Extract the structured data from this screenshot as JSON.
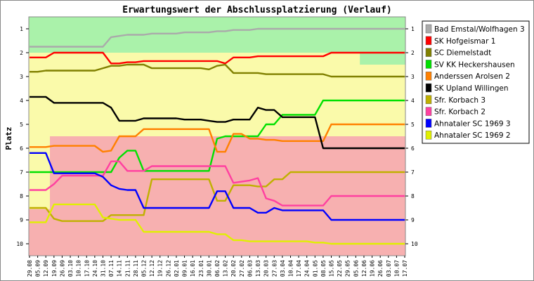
{
  "chart_data": {
    "type": "line",
    "title": "Erwartungswert der Abschlussplatzierung (Verlauf)",
    "ylabel": "Platz",
    "ylim": [
      10.5,
      0.5
    ],
    "yticks": [
      1,
      2,
      3,
      4,
      5,
      6,
      7,
      8,
      9,
      10
    ],
    "x": [
      "29.08",
      "05.09",
      "12.09",
      "19.09",
      "26.09",
      "03.10",
      "10.10",
      "17.10",
      "24.10",
      "31.10",
      "07.11",
      "14.11",
      "21.11",
      "28.11",
      "05.12",
      "12.12",
      "19.12",
      "26.12",
      "02.01",
      "09.01",
      "16.01",
      "23.01",
      "30.01",
      "06.02",
      "13.02",
      "20.02",
      "27.02",
      "06.03",
      "13.03",
      "20.03",
      "27.03",
      "03.04",
      "10.04",
      "17.04",
      "24.04",
      "01.05",
      "08.05",
      "15.05",
      "22.05",
      "29.05",
      "05.06",
      "12.06",
      "19.06",
      "26.06",
      "03.07",
      "10.07",
      "17.07"
    ],
    "xtick_labels": [
      "29.08",
      "05.09",
      "12.09",
      "19.09",
      "26.09",
      "03.10",
      "10.10",
      "17.10",
      "24.10",
      "31.10",
      "07.11",
      "14.11",
      "21.11",
      "28.11",
      "05.12",
      "12.12",
      "19.12",
      "26.12",
      "02.01",
      "09.01",
      "16.01",
      "23.01",
      "30.01",
      "06.02",
      "13.02",
      "20.02",
      "27.02",
      "06.03",
      "13.03",
      "20.03",
      "27.03",
      "03.04",
      "10.04",
      "17.04",
      "24.04",
      "01.05",
      "08.05",
      "15.05",
      "22.05",
      "29.05",
      "05.06",
      "12.06",
      "19.06",
      "26.06",
      "03.07",
      "10.07",
      "17.07"
    ],
    "zones": [
      {
        "color": "#aaf2aa",
        "boundary": [
          2,
          2,
          2,
          2,
          2,
          2,
          2,
          2,
          2,
          2,
          2,
          2,
          2,
          2,
          2,
          2,
          2,
          2,
          2,
          2,
          2,
          2,
          2,
          2,
          2,
          2,
          2,
          2,
          2,
          2,
          2,
          2,
          2,
          2,
          2,
          2,
          2,
          2,
          2,
          2,
          2,
          2.5,
          2.5,
          2.5,
          2.5,
          2.5,
          2.5
        ]
      },
      {
        "color": "#fafaaa",
        "boundary": [
          5.5,
          5.5,
          5.5,
          5.5,
          5.5,
          5.5,
          5.5,
          5.5,
          5.5,
          5.5,
          5.5,
          5.5,
          5.5,
          5.5,
          5.5,
          5.5,
          5.5,
          5.5,
          5.5,
          5.5,
          5.5,
          5.5,
          5.5,
          5.5,
          5.5,
          5.5,
          5.5,
          5.5,
          5.5,
          5.5,
          5.5,
          5.5,
          5.5,
          5.5,
          5.5,
          5.5,
          5.5,
          5.5,
          5.5,
          5.5,
          5.5,
          5.5,
          5.5,
          5.5,
          5.5,
          5.5,
          5.5
        ]
      },
      {
        "color": "#f7b0b0",
        "boundary": null
      }
    ],
    "green_notch": {
      "x_index": 3,
      "upto": 5.5
    },
    "series": [
      {
        "name": "Bad Emstal/Wolfhagen 3",
        "color": "#aaaaaa",
        "values": [
          1.75,
          1.75,
          1.75,
          1.75,
          1.75,
          1.75,
          1.75,
          1.75,
          1.75,
          1.75,
          1.35,
          1.3,
          1.25,
          1.25,
          1.25,
          1.2,
          1.2,
          1.2,
          1.2,
          1.15,
          1.15,
          1.15,
          1.15,
          1.1,
          1.1,
          1.05,
          1.05,
          1.05,
          1.0,
          1.0,
          1.0,
          1.0,
          1.0,
          1.0,
          1.0,
          1.0,
          1.0,
          1.0,
          1.0,
          1.0,
          1.0,
          1.0,
          1.0,
          1.0,
          1.0,
          1.0,
          1.0
        ]
      },
      {
        "name": "SK Hofgeismar 1",
        "color": "#ff0000",
        "values": [
          2.2,
          2.2,
          2.2,
          2.0,
          2.0,
          2.0,
          2.0,
          2.0,
          2.0,
          2.0,
          2.45,
          2.45,
          2.4,
          2.4,
          2.35,
          2.35,
          2.35,
          2.35,
          2.35,
          2.35,
          2.35,
          2.35,
          2.35,
          2.35,
          2.45,
          2.2,
          2.2,
          2.2,
          2.15,
          2.15,
          2.15,
          2.15,
          2.15,
          2.15,
          2.15,
          2.15,
          2.15,
          2.0,
          2.0,
          2.0,
          2.0,
          2.0,
          2.0,
          2.0,
          2.0,
          2.0,
          2.0
        ]
      },
      {
        "name": "SC Diemelstadt",
        "color": "#808000",
        "values": [
          2.8,
          2.8,
          2.75,
          2.75,
          2.75,
          2.75,
          2.75,
          2.75,
          2.75,
          2.65,
          2.55,
          2.55,
          2.5,
          2.5,
          2.5,
          2.65,
          2.65,
          2.65,
          2.65,
          2.65,
          2.65,
          2.65,
          2.7,
          2.55,
          2.5,
          2.85,
          2.85,
          2.85,
          2.85,
          2.9,
          2.9,
          2.9,
          2.9,
          2.9,
          2.9,
          2.9,
          2.9,
          3.0,
          3.0,
          3.0,
          3.0,
          3.0,
          3.0,
          3.0,
          3.0,
          3.0,
          3.0
        ]
      },
      {
        "name": "SV KK Heckershausen",
        "color": "#00e000",
        "values": [
          7.0,
          7.0,
          7.0,
          7.0,
          7.0,
          7.0,
          7.0,
          7.0,
          7.0,
          7.0,
          7.0,
          6.4,
          6.1,
          6.1,
          6.95,
          6.95,
          6.95,
          6.95,
          6.95,
          6.95,
          6.95,
          6.95,
          6.95,
          5.6,
          5.5,
          5.5,
          5.5,
          5.5,
          5.5,
          5.0,
          5.0,
          4.6,
          4.6,
          4.6,
          4.6,
          4.6,
          4.0,
          4.0,
          4.0,
          4.0,
          4.0,
          4.0,
          4.0,
          4.0,
          4.0,
          4.0,
          4.0
        ]
      },
      {
        "name": "Anderssen Arolsen 2",
        "color": "#ff8000",
        "values": [
          5.95,
          5.95,
          5.95,
          5.9,
          5.9,
          5.9,
          5.9,
          5.9,
          5.9,
          6.15,
          6.1,
          5.5,
          5.5,
          5.5,
          5.2,
          5.2,
          5.2,
          5.2,
          5.2,
          5.2,
          5.2,
          5.2,
          5.2,
          6.15,
          6.15,
          5.4,
          5.4,
          5.6,
          5.6,
          5.65,
          5.65,
          5.7,
          5.7,
          5.7,
          5.7,
          5.7,
          5.7,
          5.0,
          5.0,
          5.0,
          5.0,
          5.0,
          5.0,
          5.0,
          5.0,
          5.0,
          5.0
        ]
      },
      {
        "name": "SK Upland Willingen",
        "color": "#000000",
        "values": [
          3.85,
          3.85,
          3.85,
          4.1,
          4.1,
          4.1,
          4.1,
          4.1,
          4.1,
          4.1,
          4.3,
          4.85,
          4.85,
          4.85,
          4.75,
          4.75,
          4.75,
          4.75,
          4.75,
          4.8,
          4.8,
          4.8,
          4.85,
          4.9,
          4.9,
          4.8,
          4.8,
          4.8,
          4.3,
          4.4,
          4.4,
          4.7,
          4.7,
          4.7,
          4.7,
          4.7,
          6.0,
          6.0,
          6.0,
          6.0,
          6.0,
          6.0,
          6.0,
          6.0,
          6.0,
          6.0,
          6.0
        ]
      },
      {
        "name": "Sfr. Korbach 3",
        "color": "#c0b000",
        "values": [
          8.5,
          8.5,
          8.5,
          8.95,
          9.05,
          9.05,
          9.05,
          9.05,
          9.05,
          9.05,
          8.8,
          8.8,
          8.8,
          8.8,
          8.8,
          7.3,
          7.3,
          7.3,
          7.3,
          7.3,
          7.3,
          7.3,
          7.3,
          8.2,
          8.2,
          7.55,
          7.55,
          7.55,
          7.6,
          7.6,
          7.3,
          7.3,
          7.0,
          7.0,
          7.0,
          7.0,
          7.0,
          7.0,
          7.0,
          7.0,
          7.0,
          7.0,
          7.0,
          7.0,
          7.0,
          7.0,
          7.0
        ]
      },
      {
        "name": "Sfr. Korbach 2",
        "color": "#ff40a0",
        "values": [
          7.75,
          7.75,
          7.75,
          7.5,
          7.15,
          7.15,
          7.15,
          7.15,
          7.15,
          7.15,
          6.55,
          6.55,
          6.95,
          6.95,
          6.95,
          6.75,
          6.75,
          6.75,
          6.75,
          6.75,
          6.75,
          6.75,
          6.75,
          6.75,
          6.75,
          7.45,
          7.4,
          7.35,
          7.25,
          8.1,
          8.2,
          8.4,
          8.4,
          8.4,
          8.4,
          8.4,
          8.4,
          8.0,
          8.0,
          8.0,
          8.0,
          8.0,
          8.0,
          8.0,
          8.0,
          8.0,
          8.0
        ]
      },
      {
        "name": "Ahnataler SC 1969 3",
        "color": "#0000ff",
        "values": [
          6.2,
          6.2,
          6.2,
          7.05,
          7.05,
          7.05,
          7.05,
          7.05,
          7.05,
          7.2,
          7.55,
          7.7,
          7.75,
          7.75,
          8.5,
          8.5,
          8.5,
          8.5,
          8.5,
          8.5,
          8.5,
          8.5,
          8.5,
          7.8,
          7.8,
          8.5,
          8.5,
          8.5,
          8.7,
          8.7,
          8.5,
          8.6,
          8.6,
          8.6,
          8.6,
          8.6,
          8.6,
          9.0,
          9.0,
          9.0,
          9.0,
          9.0,
          9.0,
          9.0,
          9.0,
          9.0,
          9.0
        ]
      },
      {
        "name": "Ahnataler SC 1969 2",
        "color": "#e0f000",
        "values": [
          9.1,
          9.1,
          9.1,
          8.35,
          8.35,
          8.35,
          8.35,
          8.35,
          8.35,
          8.9,
          8.95,
          9.0,
          9.0,
          9.0,
          9.5,
          9.5,
          9.5,
          9.5,
          9.5,
          9.5,
          9.5,
          9.5,
          9.5,
          9.6,
          9.6,
          9.85,
          9.85,
          9.9,
          9.9,
          9.9,
          9.9,
          9.9,
          9.9,
          9.9,
          9.9,
          9.95,
          9.95,
          10.0,
          10.0,
          10.0,
          10.0,
          10.0,
          10.0,
          10.0,
          10.0,
          10.0,
          10.0
        ]
      }
    ],
    "grid": false,
    "legend_position": "right"
  }
}
